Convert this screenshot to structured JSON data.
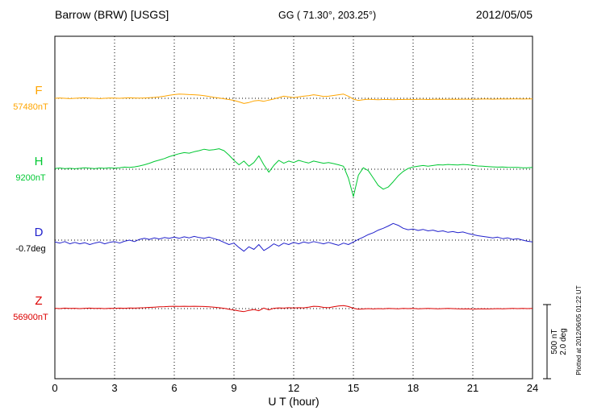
{
  "header": {
    "station": "Barrow (BRW)  [USGS]",
    "coords": "GG ( 71.30°, 203.25°)",
    "date": "2012/05/05"
  },
  "side_notes": {
    "plotted": "Plotted at 2012/06/05 01:22 UT",
    "scale_nT": "500 nT",
    "scale_deg": "2.0 deg"
  },
  "chart_data": {
    "type": "line",
    "title": "Barrow (BRW) [USGS] magnetogram, 2012/05/05",
    "xlabel": "U T (hour)",
    "xlim": [
      0,
      24
    ],
    "x_ticks": [
      0,
      3,
      6,
      9,
      12,
      15,
      18,
      21,
      24
    ],
    "x_start": 0,
    "x_step_hours": 0.25,
    "grid": "dotted vertical at 3h intervals, dotted horizontal baseline per trace",
    "scale_bar": {
      "nT": 500,
      "deg": 2.0
    },
    "series": [
      {
        "name": "F",
        "baseline_value_label": "57480nT",
        "units": "nT",
        "color": "#FFA500",
        "values": [
          0,
          2,
          0,
          -2,
          0,
          2,
          3,
          1,
          0,
          -2,
          0,
          2,
          1,
          0,
          2,
          3,
          2,
          1,
          2,
          4,
          6,
          9,
          14,
          20,
          25,
          28,
          27,
          25,
          24,
          22,
          18,
          12,
          6,
          2,
          -3,
          -8,
          -14,
          -24,
          -35,
          -28,
          -18,
          -14,
          -20,
          -12,
          -5,
          5,
          14,
          9,
          5,
          9,
          14,
          18,
          24,
          19,
          12,
          14,
          19,
          24,
          28,
          14,
          -6,
          -14,
          -10,
          -6,
          -8,
          -9,
          -8,
          -8,
          -9,
          -8,
          -8,
          -7,
          -8,
          -7,
          -7,
          -8,
          -7,
          -6,
          -7,
          -7,
          -6,
          -7,
          -6,
          -6,
          -7,
          -6,
          -5,
          -5,
          -6,
          -5,
          -4,
          -5,
          -4,
          -4,
          -5,
          -4,
          -4
        ]
      },
      {
        "name": "H",
        "baseline_value_label": "9200nT",
        "units": "nT",
        "color": "#00C832",
        "values": [
          5,
          8,
          4,
          6,
          3,
          6,
          10,
          7,
          4,
          8,
          6,
          9,
          7,
          10,
          14,
          12,
          16,
          22,
          30,
          40,
          52,
          62,
          72,
          85,
          95,
          105,
          112,
          108,
          118,
          125,
          135,
          128,
          132,
          138,
          125,
          95,
          60,
          30,
          55,
          20,
          45,
          90,
          30,
          -20,
          25,
          60,
          40,
          55,
          45,
          60,
          50,
          42,
          55,
          48,
          40,
          45,
          38,
          30,
          20,
          -60,
          -185,
          -40,
          10,
          -10,
          -60,
          -110,
          -135,
          -120,
          -85,
          -45,
          -15,
          5,
          15,
          20,
          25,
          20,
          25,
          30,
          28,
          32,
          30,
          28,
          32,
          30,
          26,
          22,
          20,
          18,
          16,
          14,
          15,
          13,
          12,
          12,
          10,
          10,
          12
        ]
      },
      {
        "name": "D",
        "baseline_value_label": "-0.7deg",
        "units": "deg",
        "color": "#2222CC",
        "value_label_color": "#000000",
        "values": [
          -0.05,
          -0.08,
          -0.04,
          -0.1,
          -0.06,
          -0.1,
          -0.07,
          -0.12,
          -0.08,
          -0.05,
          -0.1,
          -0.06,
          -0.04,
          -0.08,
          -0.03,
          0,
          -0.04,
          0.02,
          0.05,
          0.02,
          0.06,
          0.03,
          0.07,
          0.05,
          0.08,
          0.05,
          0.09,
          0.06,
          0.1,
          0.07,
          0.05,
          0.08,
          0.04,
          0,
          -0.06,
          -0.12,
          -0.08,
          -0.2,
          -0.3,
          -0.18,
          -0.25,
          -0.12,
          -0.28,
          -0.2,
          -0.1,
          -0.16,
          -0.08,
          -0.12,
          -0.06,
          -0.1,
          -0.05,
          -0.08,
          -0.04,
          -0.07,
          -0.1,
          -0.06,
          -0.1,
          -0.14,
          -0.08,
          -0.12,
          -0.05,
          0.02,
          0.08,
          0.15,
          0.2,
          0.27,
          0.32,
          0.38,
          0.45,
          0.4,
          0.32,
          0.28,
          0.3,
          0.26,
          0.29,
          0.25,
          0.27,
          0.23,
          0.25,
          0.21,
          0.23,
          0.2,
          0.22,
          0.18,
          0.15,
          0.12,
          0.1,
          0.08,
          0.06,
          0.08,
          0.04,
          0.06,
          0.02,
          0.04,
          0,
          -0.03,
          -0.05
        ]
      },
      {
        "name": "Z",
        "baseline_value_label": "56900nT",
        "units": "nT",
        "color": "#DC0000",
        "values": [
          2,
          0,
          3,
          1,
          2,
          0,
          2,
          3,
          1,
          2,
          0,
          2,
          1,
          3,
          2,
          4,
          3,
          5,
          6,
          8,
          10,
          12,
          13,
          15,
          16,
          15,
          16,
          15,
          16,
          15,
          14,
          12,
          10,
          6,
          2,
          -4,
          -10,
          -16,
          -20,
          -12,
          -6,
          -14,
          4,
          -8,
          2,
          5,
          3,
          6,
          4,
          6,
          5,
          10,
          16,
          14,
          8,
          6,
          12,
          18,
          20,
          14,
          2,
          -4,
          -2,
          0,
          -2,
          0,
          -1,
          1,
          0,
          -1,
          1,
          0,
          1,
          -1,
          0,
          1,
          0,
          -1,
          0,
          1,
          0,
          -1,
          -2,
          -1,
          -3,
          -2,
          -1,
          -2,
          -1,
          0,
          -1,
          0,
          1,
          0,
          1,
          0,
          1
        ]
      }
    ]
  }
}
